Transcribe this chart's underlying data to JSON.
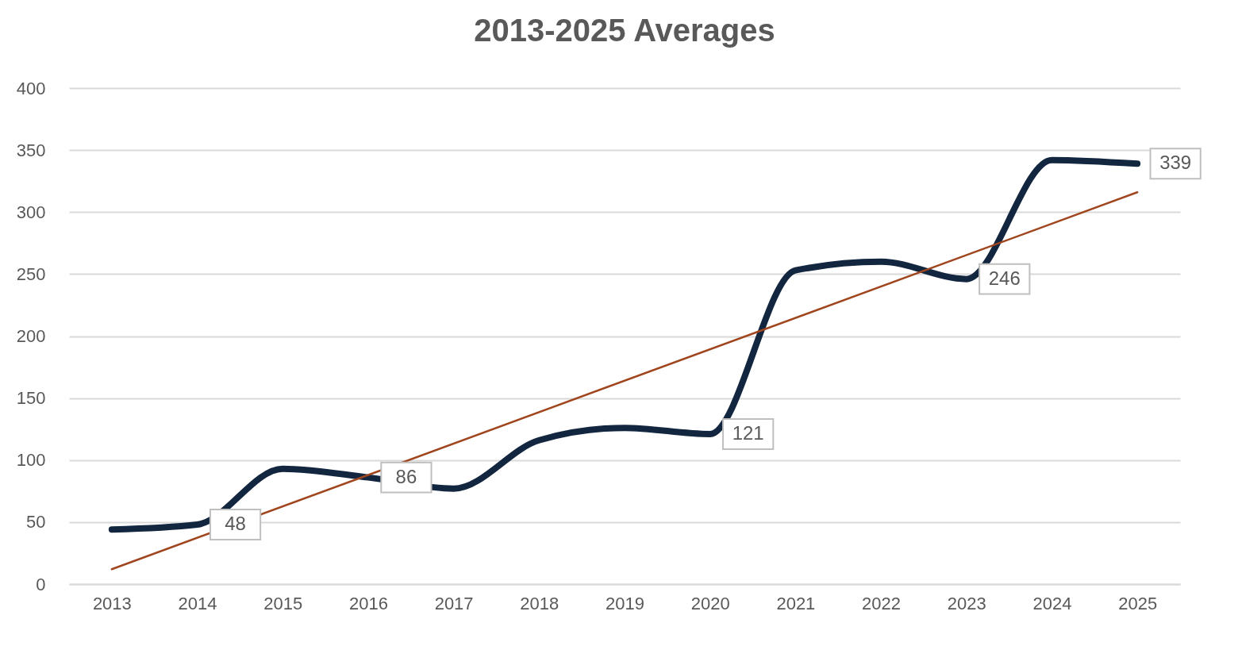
{
  "chart_data": {
    "type": "line",
    "title": "2013-2025 Averages",
    "x": [
      2013,
      2014,
      2015,
      2016,
      2017,
      2018,
      2019,
      2020,
      2021,
      2022,
      2023,
      2024,
      2025
    ],
    "xlim": [
      2012.5,
      2025.5
    ],
    "xticks": [
      2013,
      2014,
      2015,
      2016,
      2017,
      2018,
      2019,
      2020,
      2021,
      2022,
      2023,
      2024,
      2025
    ],
    "ylim": [
      0,
      400
    ],
    "yticks": [
      0,
      50,
      100,
      150,
      200,
      250,
      300,
      350,
      400
    ],
    "grid": "y",
    "series": [
      {
        "color": "#13263f",
        "values": [
          44,
          48,
          93,
          86,
          77,
          116,
          126,
          121,
          253,
          260,
          246,
          342,
          339
        ],
        "value_labels": [
          null,
          "48",
          null,
          "86",
          null,
          null,
          null,
          "121",
          null,
          null,
          "246",
          null,
          "339"
        ]
      },
      {
        "type": "line",
        "color": "#a0461e",
        "x": [
          2013,
          2025
        ],
        "values": [
          12,
          316
        ]
      }
    ]
  }
}
